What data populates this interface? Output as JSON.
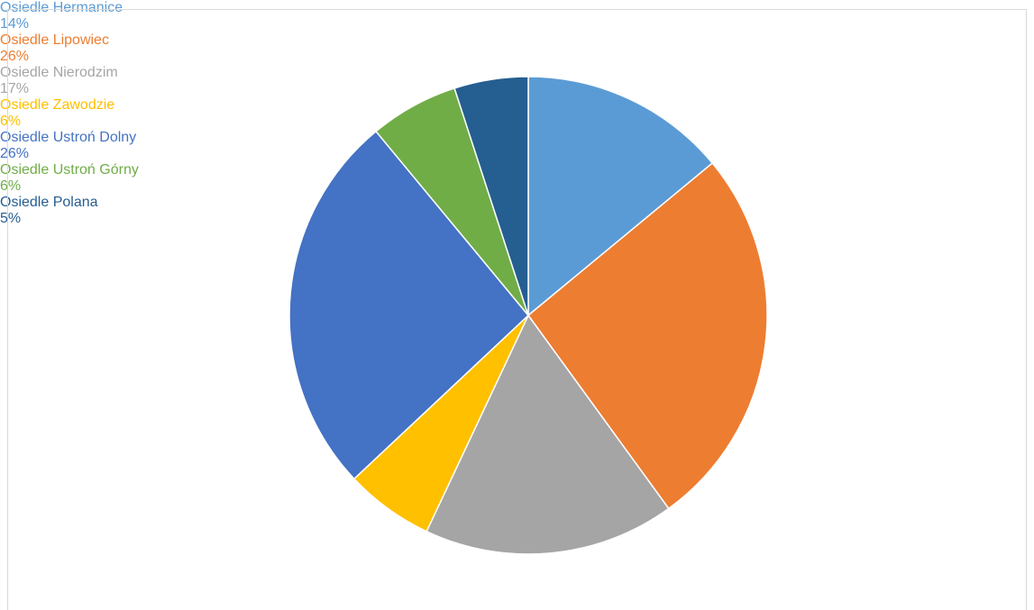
{
  "chart_data": {
    "type": "pie",
    "categories": [
      "Osiedle Hermanice",
      "Osiedle Lipowiec",
      "Osiedle Nierodzim",
      "Osiedle Zawodzie",
      "Osiedle Ustroń Dolny",
      "Osiedle Ustroń Górny",
      "Osiedle Polana"
    ],
    "values": [
      14,
      26,
      17,
      6,
      26,
      6,
      5
    ],
    "value_labels": [
      "14%",
      "26%",
      "17%",
      "6%",
      "26%",
      "6%",
      "5%"
    ],
    "colors": [
      "#5b9bd5",
      "#ed7d31",
      "#a5a5a5",
      "#ffc000",
      "#4472c4",
      "#70ad47",
      "#255e91"
    ]
  }
}
